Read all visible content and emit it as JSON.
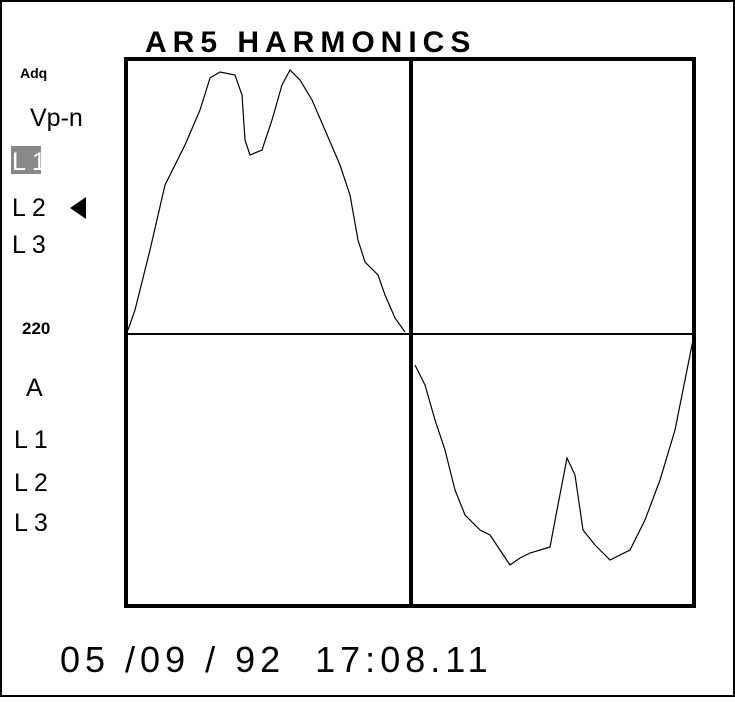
{
  "header": {
    "title": "AR5 HARMONICS"
  },
  "voltage": {
    "mode": "Adq",
    "label": "Vp-n",
    "lines": [
      "L 1",
      "L 2",
      "L 3"
    ]
  },
  "scale": "220",
  "current": {
    "label": "A",
    "lines": [
      "L 1",
      "L 2",
      "L 3"
    ]
  },
  "timestamp": "05 /09 / 92  17:08.11"
}
